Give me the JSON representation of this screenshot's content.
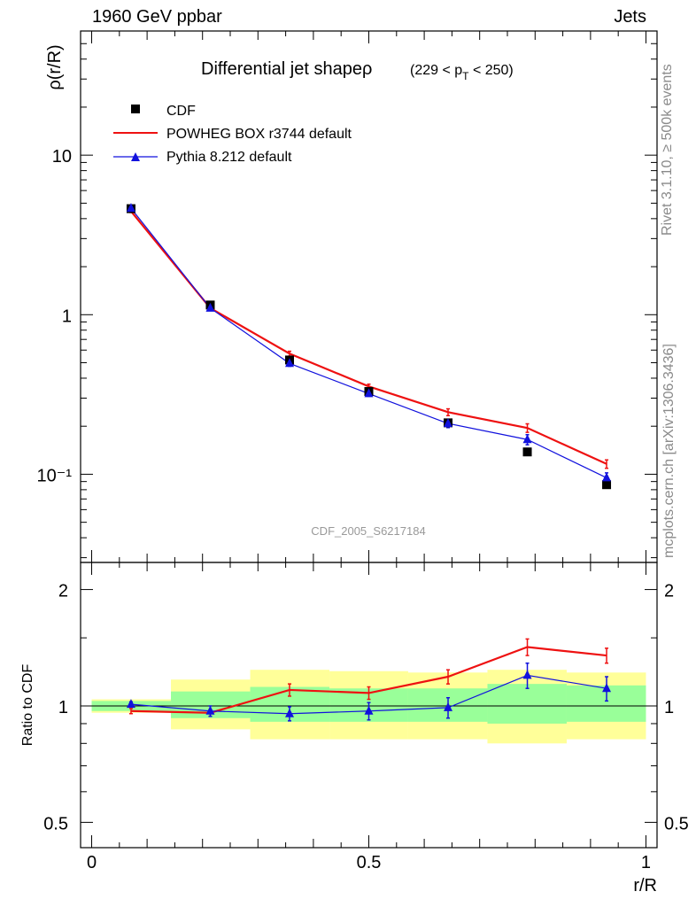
{
  "header": {
    "left": "1960 GeV ppbar",
    "right": "Jets"
  },
  "side_labels": {
    "rivet": "Rivet 3.1.10, ≥ 500k events",
    "mcplots": "mcplots.cern.ch [arXiv:1306.3436]"
  },
  "chart_data": [
    {
      "type": "line",
      "title": "Differential jet shapeρ",
      "subtitle": "(229 < p_T < 250)",
      "ylabel": "ρ(r/R)",
      "xlabel": "r/R",
      "yscale": "log",
      "ylim": [
        0.028,
        60
      ],
      "xlim": [
        -0.02,
        1.02
      ],
      "watermark": "CDF_2005_S6217184",
      "legend": {
        "placement": "top-left",
        "entries": [
          "CDF",
          "POWHEG BOX r3744 default",
          "Pythia 8.212 default"
        ]
      },
      "y_tick_labels": [
        "10⁻¹",
        "1",
        "10"
      ],
      "x": [
        0.071,
        0.214,
        0.357,
        0.5,
        0.643,
        0.786,
        0.929
      ],
      "series": [
        {
          "name": "CDF",
          "marker": "square",
          "color": "#000000",
          "values": [
            4.62,
            1.15,
            0.52,
            0.33,
            0.21,
            0.138,
            0.086
          ]
        },
        {
          "name": "POWHEG BOX r3744 default",
          "marker": "none",
          "color": "#ee1111",
          "values": [
            4.45,
            1.1,
            0.57,
            0.355,
            0.245,
            0.195,
            0.116
          ],
          "err": [
            0.08,
            0.02,
            0.02,
            0.012,
            0.012,
            0.012,
            0.007
          ]
        },
        {
          "name": "Pythia 8.212 default",
          "marker": "triangle",
          "color": "#1111dd",
          "values": [
            4.65,
            1.1,
            0.495,
            0.32,
            0.208,
            0.165,
            0.095
          ],
          "err": [
            0.08,
            0.02,
            0.02,
            0.012,
            0.012,
            0.012,
            0.007
          ]
        }
      ]
    },
    {
      "type": "line",
      "ylabel": "Ratio to CDF",
      "xlabel": "r/R",
      "yscale": "log",
      "ylim": [
        0.43,
        2.35
      ],
      "xlim": [
        -0.02,
        1.02
      ],
      "y_tick_labels": [
        "0.5",
        "1",
        "2"
      ],
      "x_tick_labels": [
        "0",
        "0.5",
        "1"
      ],
      "x": [
        0.071,
        0.214,
        0.357,
        0.5,
        0.643,
        0.786,
        0.929
      ],
      "bands": {
        "bin_edges": [
          0.0,
          0.143,
          0.286,
          0.429,
          0.571,
          0.714,
          0.857,
          1.0
        ],
        "inner": [
          [
            0.97,
            1.03
          ],
          [
            0.93,
            1.09
          ],
          [
            0.91,
            1.12
          ],
          [
            0.91,
            1.11
          ],
          [
            0.91,
            1.11
          ],
          [
            0.9,
            1.14
          ],
          [
            0.91,
            1.13
          ]
        ],
        "outer": [
          [
            0.96,
            1.04
          ],
          [
            0.87,
            1.17
          ],
          [
            0.82,
            1.24
          ],
          [
            0.82,
            1.23
          ],
          [
            0.82,
            1.22
          ],
          [
            0.8,
            1.24
          ],
          [
            0.82,
            1.22
          ]
        ],
        "inner_color": "#99ff99",
        "outer_color": "#ffff99"
      },
      "series": [
        {
          "name": "POWHEG BOX r3744 default",
          "color": "#ee1111",
          "values": [
            0.97,
            0.96,
            1.1,
            1.08,
            1.19,
            1.42,
            1.35
          ],
          "err": [
            0.015,
            0.02,
            0.04,
            0.04,
            0.05,
            0.07,
            0.06
          ]
        },
        {
          "name": "Pythia 8.212 default",
          "color": "#1111dd",
          "values": [
            1.01,
            0.97,
            0.955,
            0.97,
            0.99,
            1.2,
            1.11
          ],
          "err": [
            0.015,
            0.03,
            0.04,
            0.05,
            0.06,
            0.09,
            0.08
          ]
        }
      ]
    }
  ]
}
